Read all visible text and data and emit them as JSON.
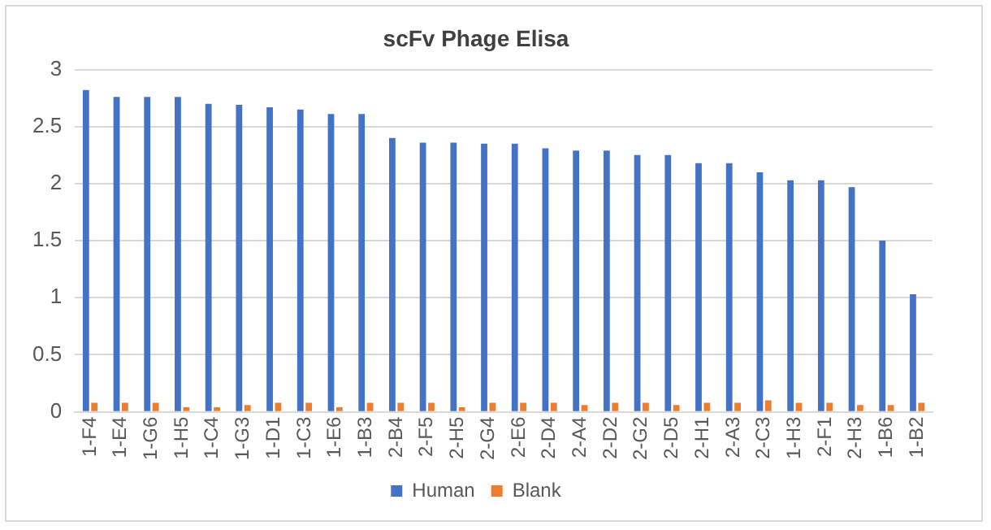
{
  "chart_data": {
    "type": "bar",
    "title": "scFv Phage Elisa",
    "categories": [
      "1-F4",
      "1-E4",
      "1-G6",
      "1-H5",
      "1-C4",
      "1-G3",
      "1-D1",
      "1-C3",
      "1-E6",
      "1-B3",
      "2-B4",
      "2-F5",
      "2-H5",
      "2-G4",
      "2-E6",
      "2-D4",
      "2-A4",
      "2-D2",
      "2-G2",
      "2-D5",
      "2-H1",
      "2-A3",
      "2-C3",
      "1-H3",
      "2-F1",
      "2-H3",
      "1-B6",
      "1-B2"
    ],
    "series": [
      {
        "name": "Human",
        "color": "#4472c4",
        "values": [
          2.82,
          2.76,
          2.76,
          2.76,
          2.7,
          2.69,
          2.67,
          2.65,
          2.61,
          2.61,
          2.4,
          2.36,
          2.36,
          2.35,
          2.35,
          2.31,
          2.29,
          2.29,
          2.25,
          2.25,
          2.18,
          2.18,
          2.1,
          2.03,
          2.03,
          1.97,
          1.5,
          1.03
        ]
      },
      {
        "name": "Blank",
        "color": "#ed7d31",
        "values": [
          0.08,
          0.08,
          0.08,
          0.04,
          0.04,
          0.06,
          0.08,
          0.08,
          0.04,
          0.08,
          0.08,
          0.08,
          0.04,
          0.08,
          0.08,
          0.08,
          0.06,
          0.08,
          0.08,
          0.06,
          0.08,
          0.08,
          0.1,
          0.08,
          0.08,
          0.06,
          0.06,
          0.08
        ]
      }
    ],
    "ylim": [
      0,
      3
    ],
    "yticks": [
      0,
      0.5,
      1,
      1.5,
      2,
      2.5,
      3
    ],
    "grid": "y",
    "legend": "bottom"
  }
}
